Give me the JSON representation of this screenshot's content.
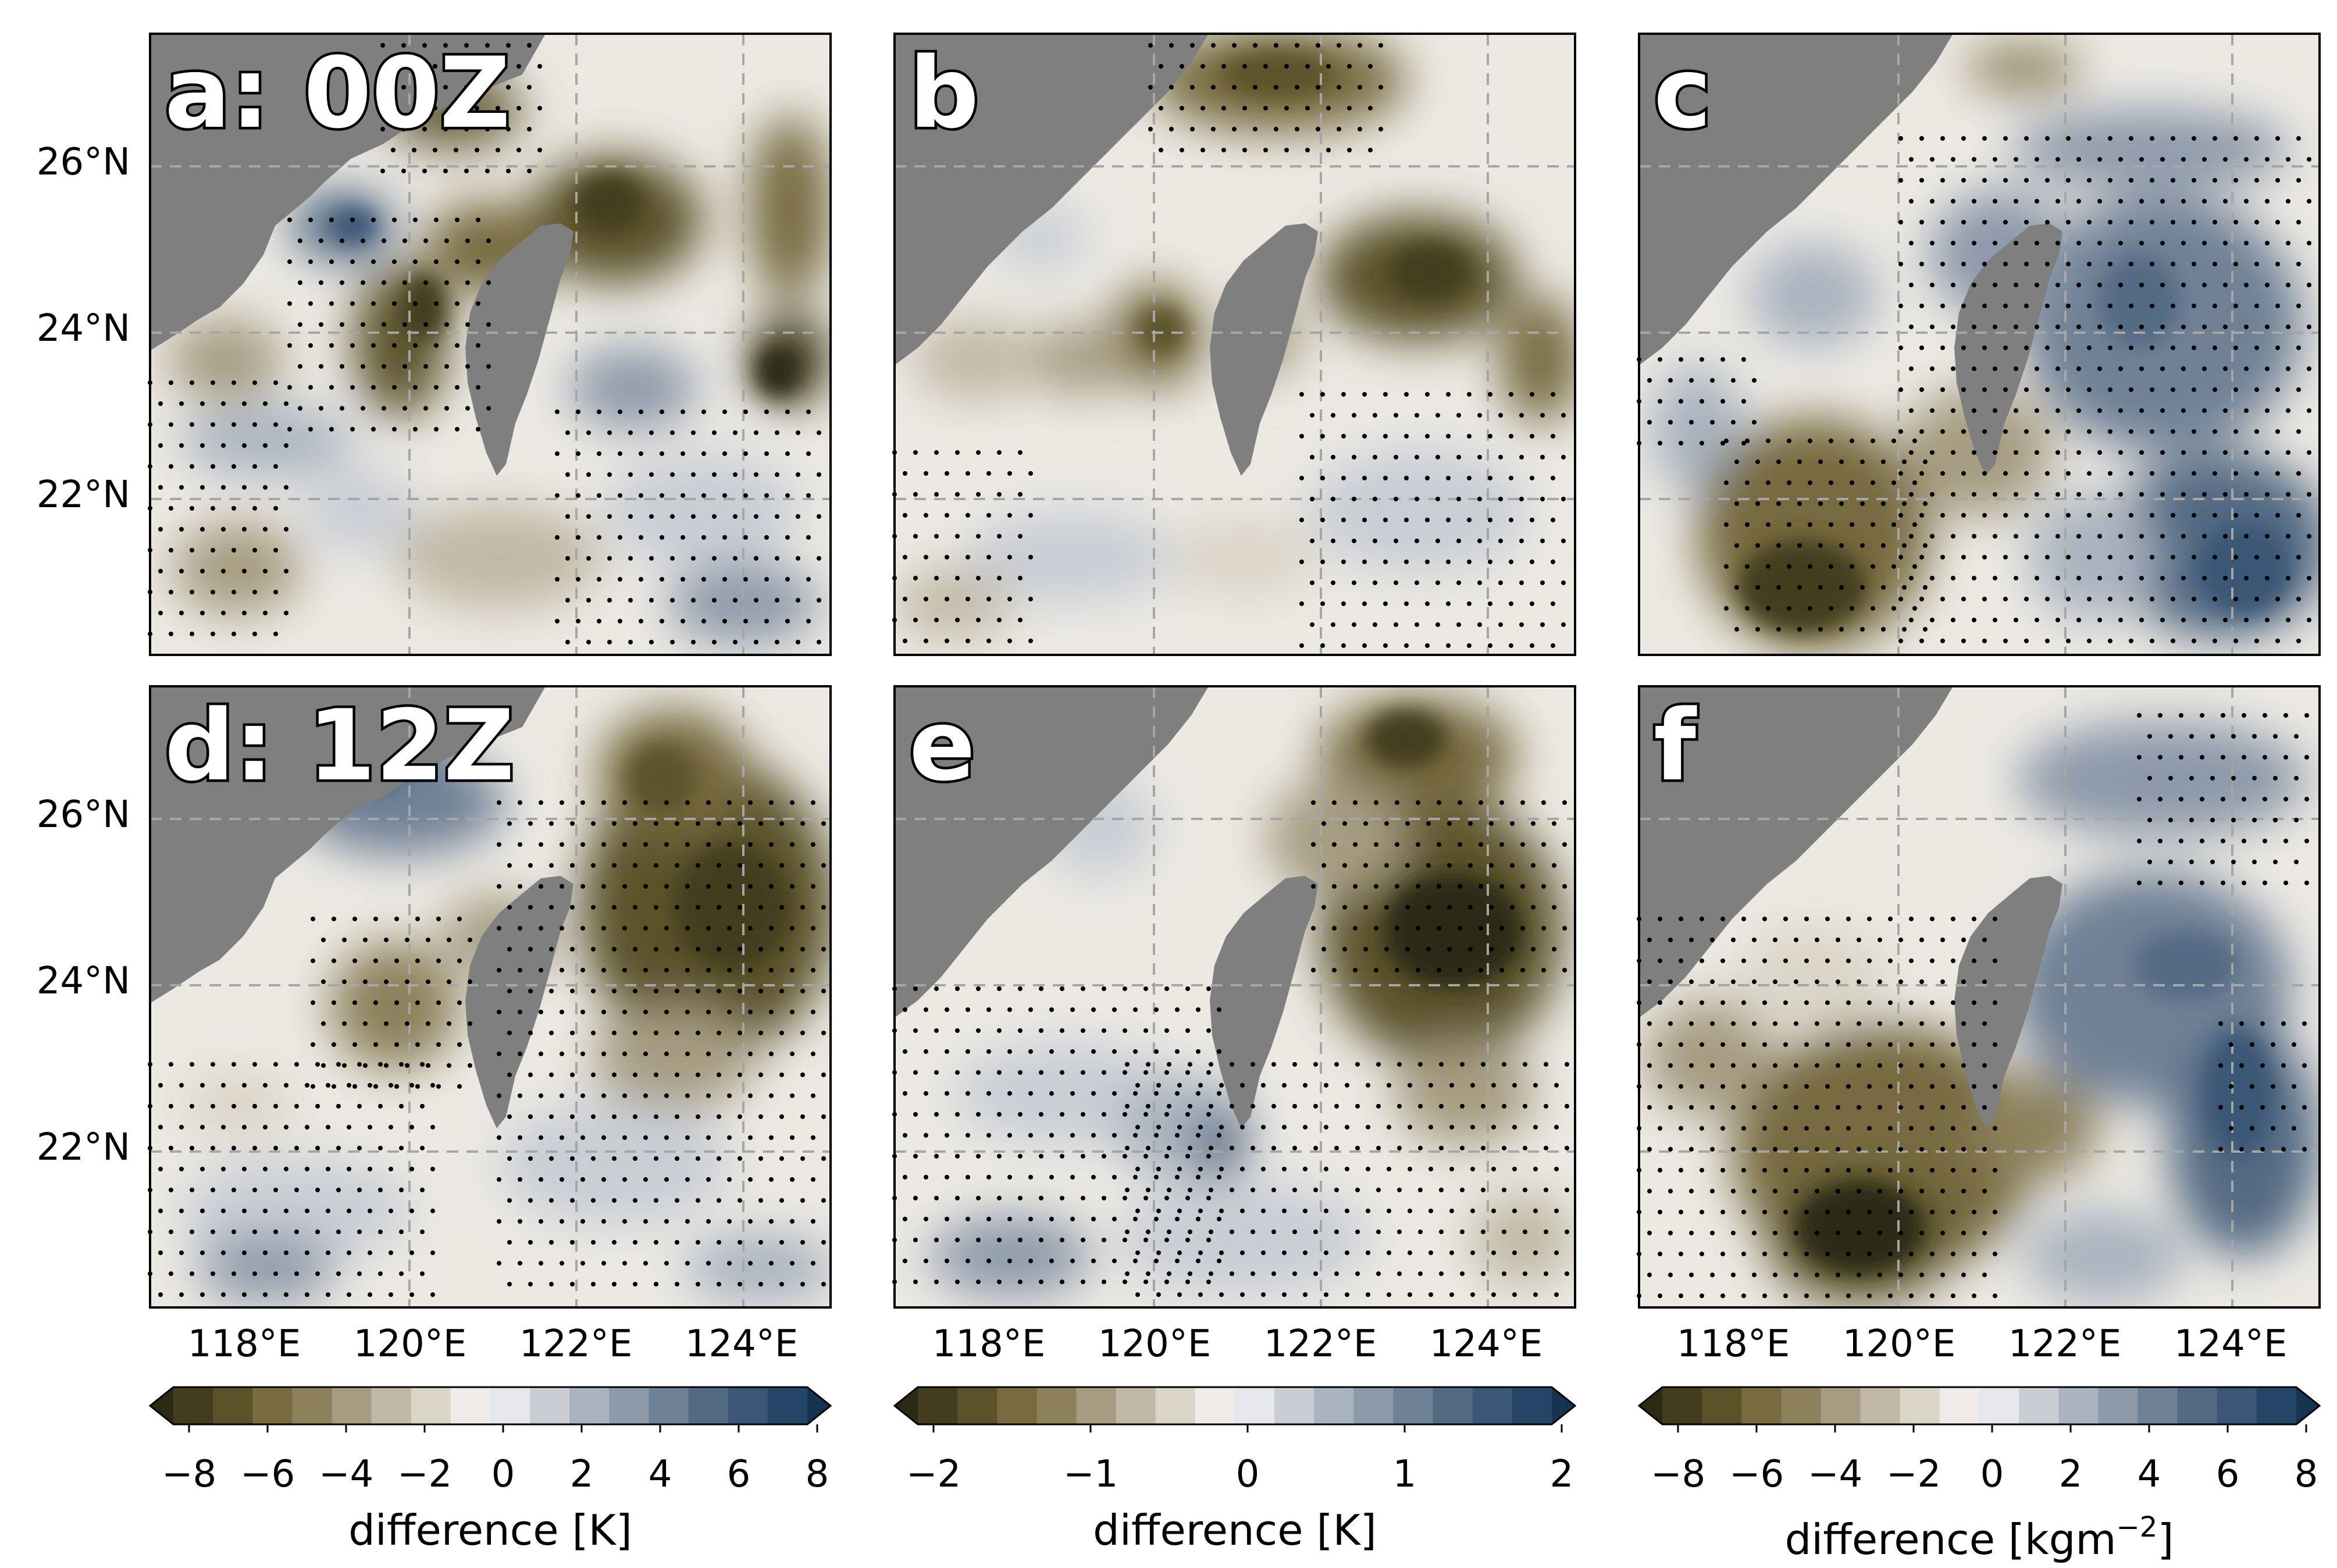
{
  "panels": [
    {
      "id": "a",
      "label": "a: 00Z"
    },
    {
      "id": "b",
      "label": "b"
    },
    {
      "id": "c",
      "label": "c"
    },
    {
      "id": "d",
      "label": "d: 12Z"
    },
    {
      "id": "e",
      "label": "e"
    },
    {
      "id": "f",
      "label": "f"
    }
  ],
  "lat_ticks": [
    "26°N",
    "24°N",
    "22°N"
  ],
  "lon_ticks": [
    "118°E",
    "120°E",
    "122°E",
    "124°E"
  ],
  "colorbars": [
    {
      "ticks": [
        "−8",
        "−6",
        "−4",
        "−2",
        "0",
        "2",
        "4",
        "6",
        "8"
      ],
      "label": "difference [K]"
    },
    {
      "ticks": [
        "−2",
        "−1",
        "0",
        "1",
        "2"
      ],
      "label": "difference [K]"
    },
    {
      "ticks": [
        "−8",
        "−6",
        "−4",
        "−2",
        "0",
        "2",
        "4",
        "6",
        "8"
      ],
      "label_main": "difference [kgm",
      "label_sup": "−2",
      "label_end": "]"
    }
  ],
  "colors": {
    "land": "#7f7f7f",
    "neutral": "#ece9e3",
    "palette": [
      "#2c2914",
      "#433c1e",
      "#5c5229",
      "#776b3f",
      "#8d815c",
      "#a69c81",
      "#c1b9a6",
      "#dbd5c8",
      "#efebe6",
      "#e6e7ea",
      "#c9ced5",
      "#a9b3bf",
      "#8d9aaa",
      "#6f8196",
      "#536a83",
      "#3b5676",
      "#254567",
      "#163352"
    ]
  }
}
